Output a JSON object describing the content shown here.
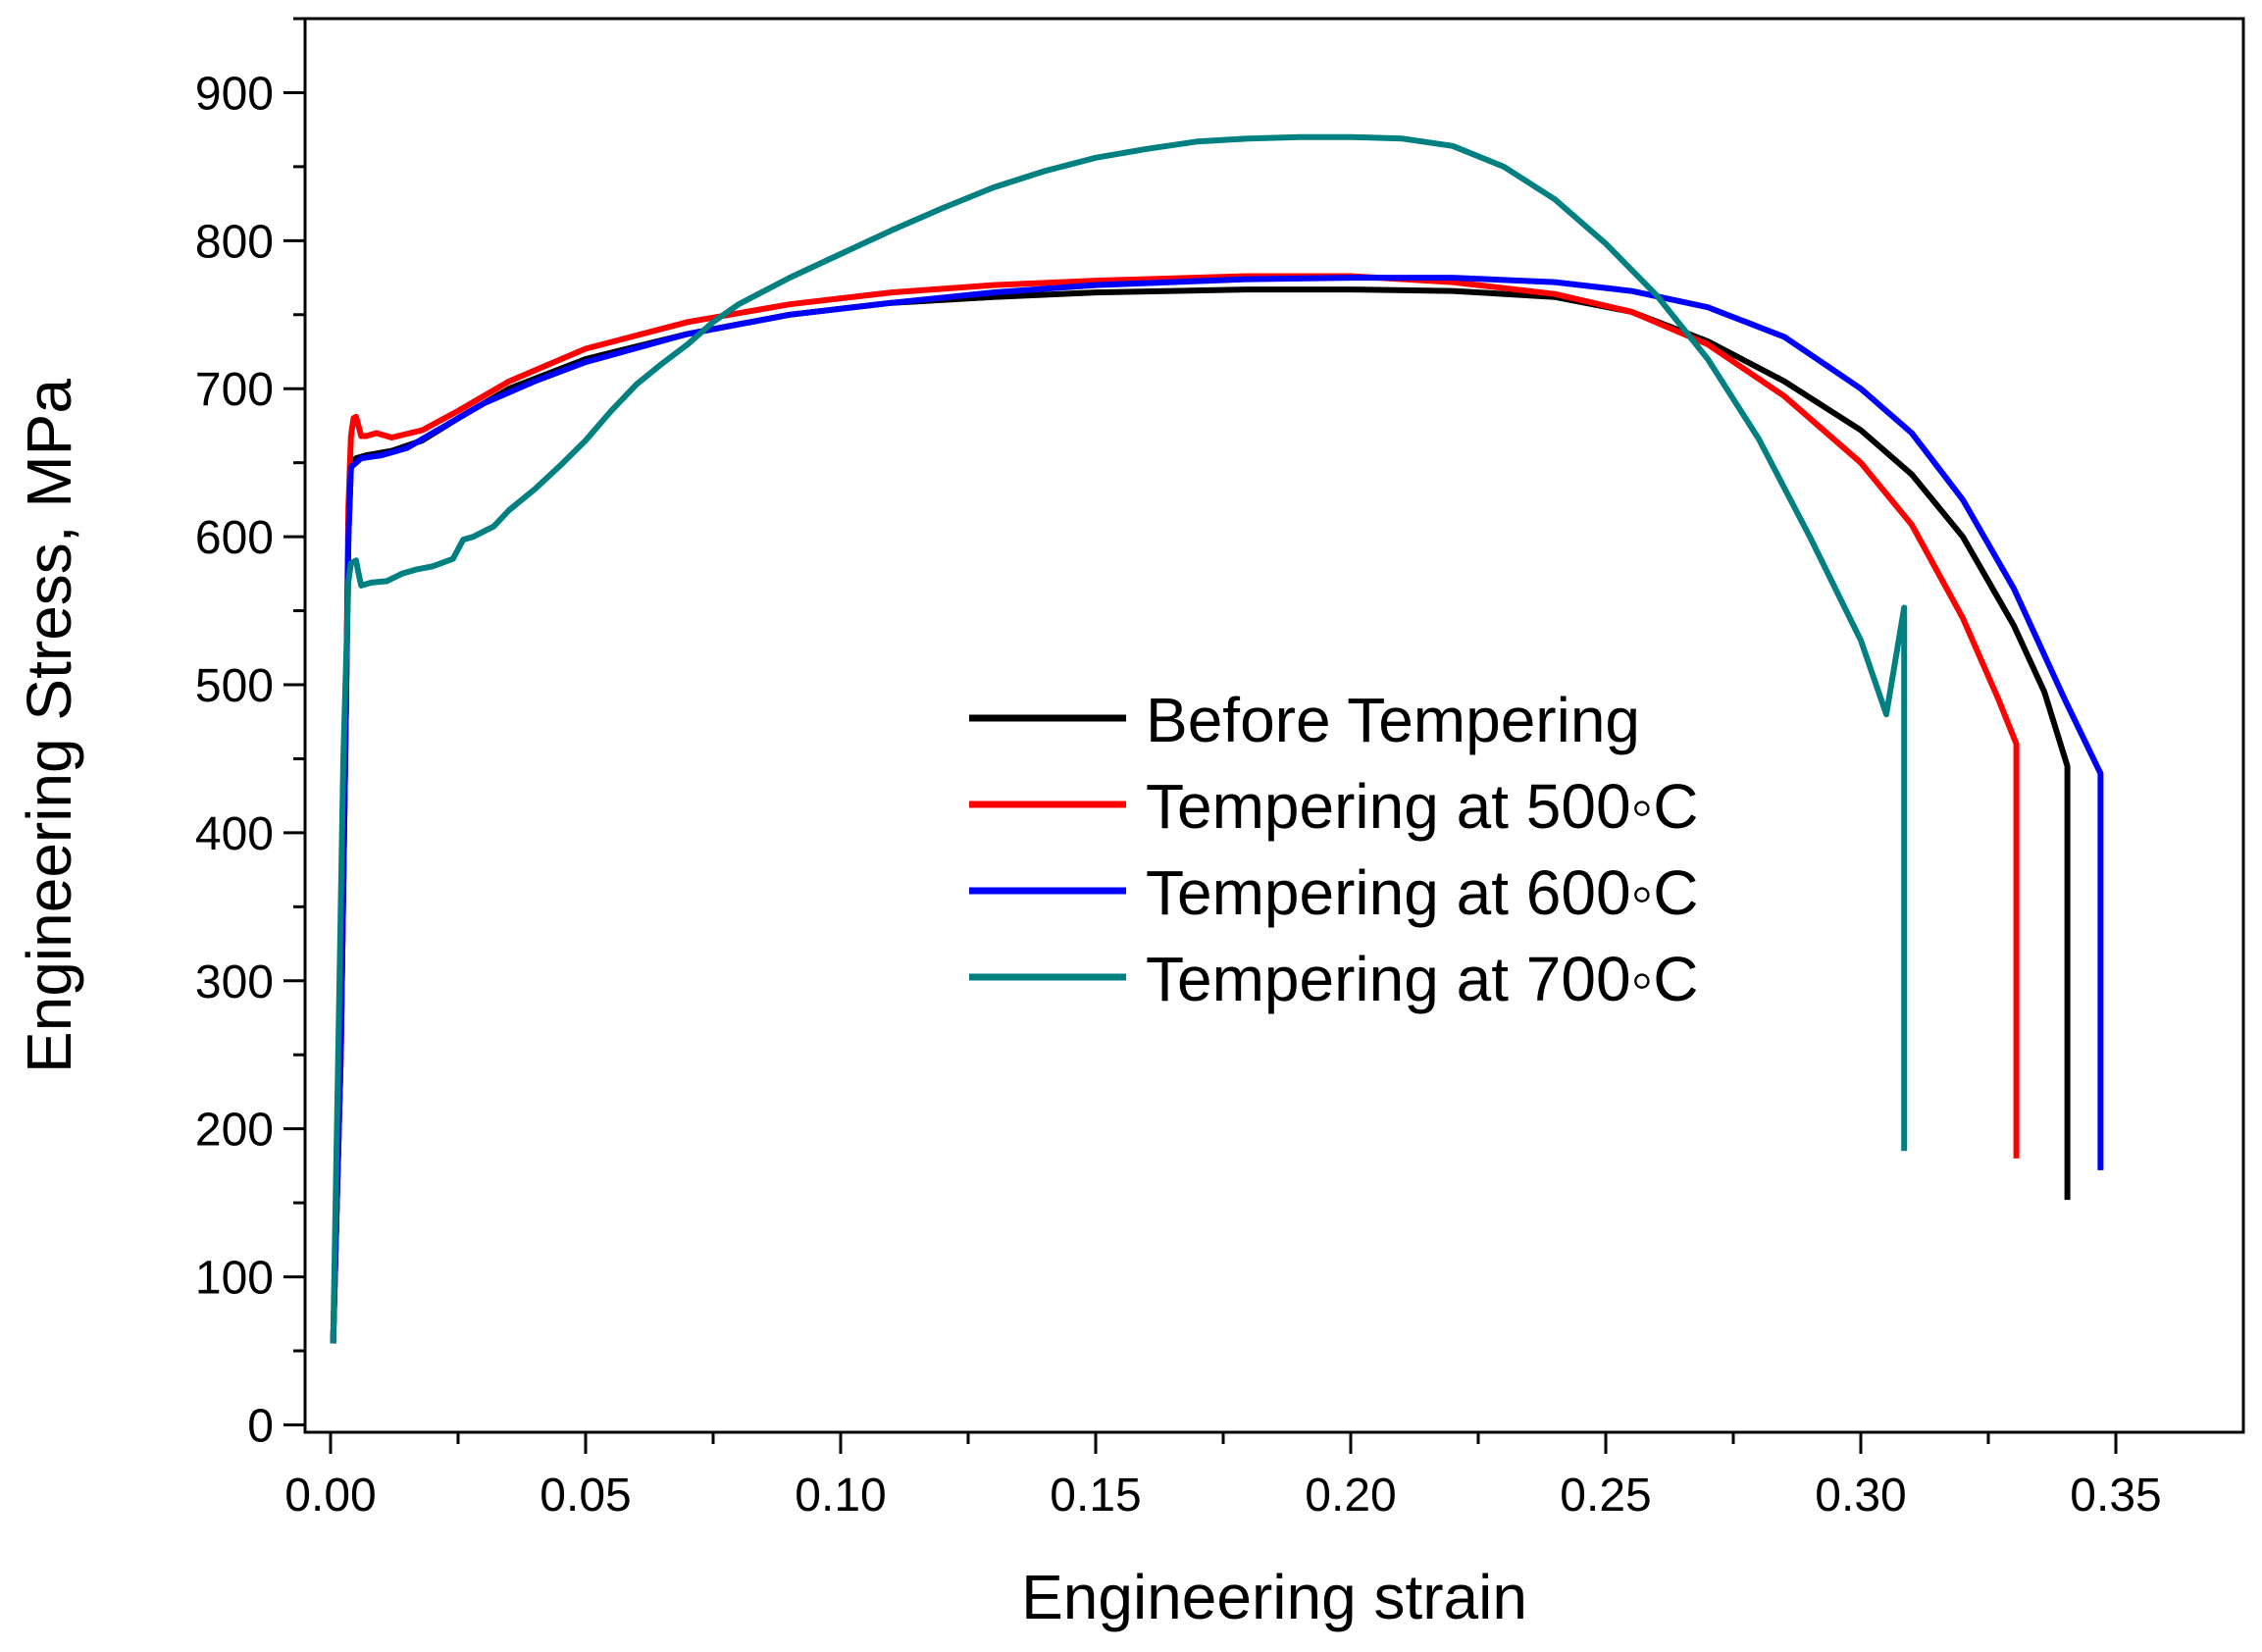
{
  "chart_data": {
    "type": "line",
    "title": "",
    "xlabel": "Engineering strain",
    "ylabel": "Engineering Stress, MPa",
    "xlim": [
      -0.005,
      0.375
    ],
    "ylim": [
      -5,
      950
    ],
    "xticks": [
      0.0,
      0.05,
      0.1,
      0.15,
      0.2,
      0.25,
      0.3,
      0.35
    ],
    "xtick_labels": [
      "0.00",
      "0.05",
      "0.10",
      "0.15",
      "0.20",
      "0.25",
      "0.30",
      "0.35"
    ],
    "yticks": [
      0,
      100,
      200,
      300,
      400,
      500,
      600,
      700,
      800,
      900
    ],
    "ytick_labels": [
      "0",
      "100",
      "200",
      "300",
      "400",
      "500",
      "600",
      "700",
      "800",
      "900"
    ],
    "grid": false,
    "legend_position": "center-right",
    "series": [
      {
        "name": "Before Tempering",
        "color": "#000000",
        "x": [
          0.0005,
          0.002,
          0.003,
          0.0035,
          0.004,
          0.005,
          0.007,
          0.012,
          0.018,
          0.025,
          0.035,
          0.05,
          0.07,
          0.09,
          0.11,
          0.13,
          0.15,
          0.18,
          0.2,
          0.22,
          0.24,
          0.255,
          0.27,
          0.285,
          0.3,
          0.31,
          0.32,
          0.33,
          0.336,
          0.3405,
          0.3405,
          0.3405
        ],
        "y": [
          55,
          250,
          480,
          600,
          648,
          653,
          655,
          658,
          665,
          680,
          700,
          720,
          737,
          750,
          758,
          762,
          765,
          767,
          767,
          766,
          762,
          752,
          732,
          705,
          672,
          642,
          600,
          540,
          495,
          445,
          300,
          152
        ]
      },
      {
        "name": "Tempering at 500◦C",
        "color": "#ff0000",
        "x": [
          0.0005,
          0.002,
          0.003,
          0.0035,
          0.004,
          0.0045,
          0.005,
          0.006,
          0.007,
          0.009,
          0.012,
          0.018,
          0.025,
          0.035,
          0.05,
          0.07,
          0.09,
          0.11,
          0.13,
          0.15,
          0.18,
          0.2,
          0.22,
          0.24,
          0.255,
          0.27,
          0.285,
          0.3,
          0.31,
          0.32,
          0.327,
          0.3305,
          0.3305,
          0.3305
        ],
        "y": [
          55,
          250,
          480,
          620,
          668,
          680,
          681,
          668,
          668,
          670,
          667,
          672,
          685,
          705,
          727,
          745,
          757,
          765,
          770,
          773,
          776,
          776,
          772,
          764,
          752,
          730,
          695,
          650,
          608,
          545,
          490,
          460,
          300,
          180
        ]
      },
      {
        "name": "Tempering at 600◦C",
        "color": "#0000ff",
        "x": [
          0.0005,
          0.002,
          0.003,
          0.0035,
          0.004,
          0.006,
          0.01,
          0.015,
          0.02,
          0.03,
          0.04,
          0.05,
          0.07,
          0.09,
          0.11,
          0.13,
          0.15,
          0.18,
          0.2,
          0.22,
          0.24,
          0.255,
          0.27,
          0.285,
          0.3,
          0.31,
          0.32,
          0.33,
          0.34,
          0.347,
          0.347,
          0.347
        ],
        "y": [
          55,
          250,
          480,
          600,
          647,
          653,
          655,
          660,
          670,
          690,
          705,
          718,
          737,
          750,
          758,
          765,
          770,
          774,
          775,
          775,
          772,
          766,
          755,
          735,
          700,
          670,
          625,
          565,
          490,
          440,
          300,
          172
        ]
      },
      {
        "name": "Tempering at 700◦C",
        "color": "#008080",
        "x": [
          0.0005,
          0.0015,
          0.0025,
          0.0035,
          0.004,
          0.005,
          0.0055,
          0.006,
          0.008,
          0.011,
          0.014,
          0.017,
          0.02,
          0.024,
          0.026,
          0.028,
          0.032,
          0.035,
          0.04,
          0.045,
          0.05,
          0.055,
          0.06,
          0.065,
          0.07,
          0.075,
          0.08,
          0.09,
          0.1,
          0.11,
          0.12,
          0.13,
          0.14,
          0.15,
          0.16,
          0.17,
          0.18,
          0.19,
          0.2,
          0.21,
          0.22,
          0.23,
          0.24,
          0.25,
          0.26,
          0.27,
          0.28,
          0.29,
          0.3,
          0.305,
          0.3085,
          0.3085,
          0.3085
        ],
        "y": [
          55,
          250,
          450,
          570,
          582,
          584,
          575,
          567,
          569,
          570,
          575,
          578,
          580,
          585,
          598,
          600,
          607,
          618,
          632,
          648,
          665,
          685,
          703,
          717,
          730,
          745,
          757,
          775,
          791,
          807,
          822,
          836,
          847,
          856,
          862,
          867,
          869,
          870,
          870,
          869,
          864,
          850,
          828,
          798,
          763,
          720,
          666,
          600,
          530,
          480,
          552,
          350,
          185
        ]
      }
    ]
  }
}
